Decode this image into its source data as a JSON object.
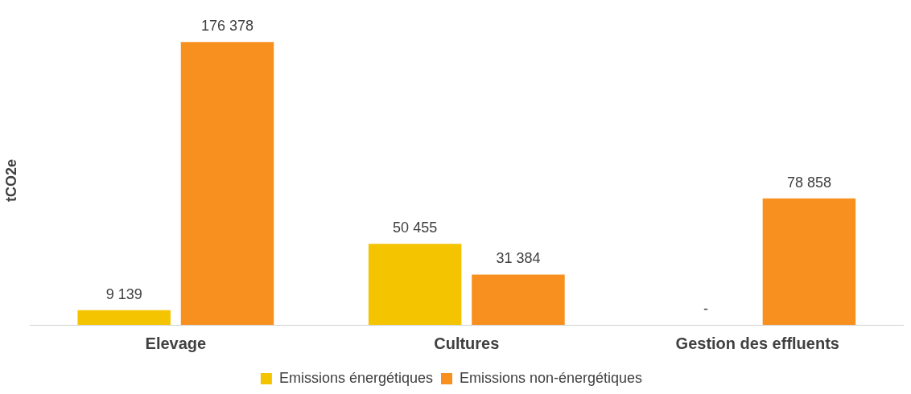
{
  "chart_data": {
    "type": "bar",
    "ylabel": "tCO2e",
    "categories": [
      "Elevage",
      "Cultures",
      "Gestion des effluents"
    ],
    "series": [
      {
        "name": "Emissions énergétiques",
        "color": "#f5c400",
        "values": [
          9139,
          50455,
          null
        ],
        "value_labels": [
          "9 139",
          "50 455",
          "-"
        ]
      },
      {
        "name": "Emissions non-énergétiques",
        "color": "#f7901e",
        "values": [
          176378,
          31384,
          78858
        ],
        "value_labels": [
          "176 378",
          "31 384",
          "78 858"
        ]
      }
    ],
    "legend": "bottom",
    "grid": false
  }
}
